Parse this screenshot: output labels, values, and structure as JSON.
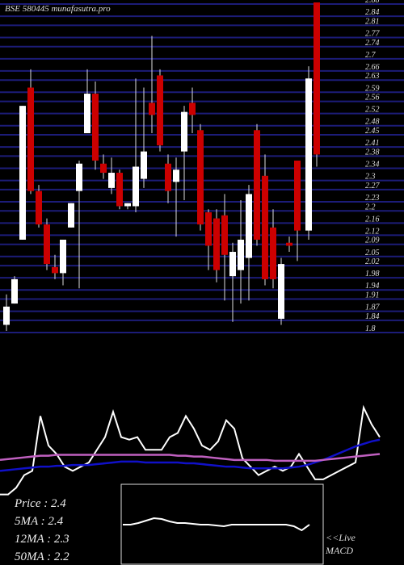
{
  "chart_data": [
    {
      "type": "candlestick",
      "title": "BSE 580445 munafasutra.pro",
      "up_color": "#ffffff",
      "down_color": "#cc0000",
      "grid": true,
      "grid_color": "#1c1c78",
      "ylim": [
        1.8,
        2.88
      ],
      "yticks": [
        2.88,
        2.84,
        2.81,
        2.77,
        2.74,
        2.7,
        2.66,
        2.63,
        2.59,
        2.56,
        2.52,
        2.48,
        2.45,
        2.41,
        2.38,
        2.34,
        2.3,
        2.27,
        2.23,
        2.2,
        2.16,
        2.12,
        2.09,
        2.05,
        2.02,
        1.98,
        1.94,
        1.91,
        1.87,
        1.84,
        1.8
      ],
      "open": [
        1.82,
        1.89,
        2.1,
        2.6,
        2.26,
        2.15,
        2.01,
        1.99,
        2.14,
        2.26,
        2.45,
        2.58,
        2.35,
        2.27,
        2.32,
        2.21,
        2.21,
        2.3,
        2.55,
        2.64,
        2.35,
        2.29,
        2.39,
        2.55,
        2.46,
        2.19,
        2.17,
        2.18,
        1.98,
        2.0,
        2.04,
        2.46,
        2.31,
        2.14,
        1.84,
        2.09,
        2.36,
        2.13,
        2.88
      ],
      "high": [
        1.92,
        1.98,
        2.54,
        2.66,
        2.28,
        2.17,
        2.05,
        2.1,
        2.22,
        2.36,
        2.66,
        2.62,
        2.38,
        2.37,
        2.33,
        2.22,
        2.63,
        2.6,
        2.77,
        2.66,
        2.38,
        2.37,
        2.54,
        2.6,
        2.48,
        2.2,
        2.2,
        2.25,
        2.09,
        2.23,
        2.28,
        2.48,
        2.38,
        2.2,
        2.04,
        2.11,
        2.36,
        2.67,
        2.88
      ],
      "low": [
        1.8,
        1.89,
        2.1,
        2.25,
        2.14,
        2.0,
        1.97,
        1.95,
        2.14,
        1.94,
        2.45,
        2.33,
        2.3,
        2.25,
        2.2,
        2.2,
        2.19,
        2.27,
        2.45,
        2.39,
        2.22,
        2.11,
        2.23,
        2.45,
        2.13,
        2.0,
        1.96,
        1.9,
        1.83,
        1.89,
        1.9,
        2.08,
        1.95,
        1.94,
        1.82,
        2.06,
        2.03,
        2.1,
        2.34
      ],
      "close": [
        1.88,
        1.97,
        2.54,
        2.26,
        2.15,
        2.02,
        1.99,
        2.1,
        2.22,
        2.35,
        2.58,
        2.36,
        2.32,
        2.32,
        2.21,
        2.22,
        2.34,
        2.39,
        2.51,
        2.41,
        2.26,
        2.33,
        2.52,
        2.51,
        2.15,
        2.08,
        2.0,
        2.05,
        2.06,
        2.1,
        2.25,
        2.1,
        1.97,
        1.97,
        2.02,
        2.08,
        2.13,
        2.63,
        2.38
      ]
    },
    {
      "type": "line",
      "ylim": [
        0,
        110
      ],
      "x": [
        0,
        10,
        20,
        30,
        40,
        50,
        60,
        70,
        80,
        90,
        100,
        110,
        120,
        130,
        140,
        150,
        160,
        170,
        180,
        190,
        200,
        210,
        220,
        230,
        240,
        250,
        260,
        270,
        280,
        290,
        300,
        310,
        320,
        330,
        340,
        350,
        360,
        370,
        380,
        390,
        400,
        410,
        420,
        430,
        440,
        450,
        460,
        470
      ],
      "series": [
        {
          "color": "#ffffff",
          "values": [
            7,
            7,
            15,
            30,
            35,
            100,
            65,
            55,
            40,
            35,
            40,
            45,
            60,
            75,
            105,
            75,
            72,
            75,
            60,
            60,
            60,
            75,
            80,
            100,
            85,
            65,
            60,
            70,
            95,
            85,
            50,
            40,
            30,
            35,
            40,
            35,
            40,
            55,
            40,
            25,
            25,
            30,
            35,
            40,
            45,
            110,
            90,
            75
          ]
        },
        {
          "color": "#1010c8",
          "values": [
            35,
            36,
            37,
            38,
            39,
            40,
            40,
            41,
            41,
            42,
            42,
            42,
            43,
            44,
            45,
            46,
            46,
            46,
            45,
            45,
            45,
            45,
            45,
            44,
            44,
            43,
            42,
            41,
            40,
            40,
            39,
            38,
            38,
            38,
            38,
            38,
            39,
            40,
            42,
            45,
            48,
            52,
            56,
            60,
            64,
            67,
            70,
            72
          ]
        },
        {
          "color": "#c060c0",
          "values": [
            48,
            49,
            50,
            51,
            52,
            53,
            53,
            54,
            54,
            54,
            54,
            54,
            54,
            54,
            54,
            54,
            54,
            54,
            54,
            54,
            54,
            54,
            53,
            53,
            52,
            52,
            51,
            50,
            49,
            48,
            48,
            48,
            48,
            48,
            47,
            47,
            47,
            47,
            47,
            47,
            48,
            49,
            50,
            51,
            52,
            53,
            54,
            55
          ]
        }
      ],
      "labels": [
        "Price   : 2.4",
        "5MA : 2.4",
        "12MA : 2.3",
        "50MA : 2.2"
      ]
    },
    {
      "type": "macd",
      "ylim": [
        0,
        100
      ],
      "color": "#ffffff",
      "x": [
        0,
        1,
        2,
        3,
        4,
        5,
        6,
        7,
        8,
        9,
        10,
        11,
        12,
        13,
        14,
        15,
        16,
        17,
        18,
        19,
        20,
        21,
        22,
        23,
        24
      ],
      "values": [
        50,
        50,
        52,
        55,
        58,
        57,
        54,
        52,
        52,
        51,
        50,
        50,
        49,
        48,
        50,
        50,
        50,
        50,
        50,
        50,
        50,
        50,
        48,
        43,
        50
      ],
      "labels": [
        "<<Live",
        "MACD"
      ]
    }
  ]
}
